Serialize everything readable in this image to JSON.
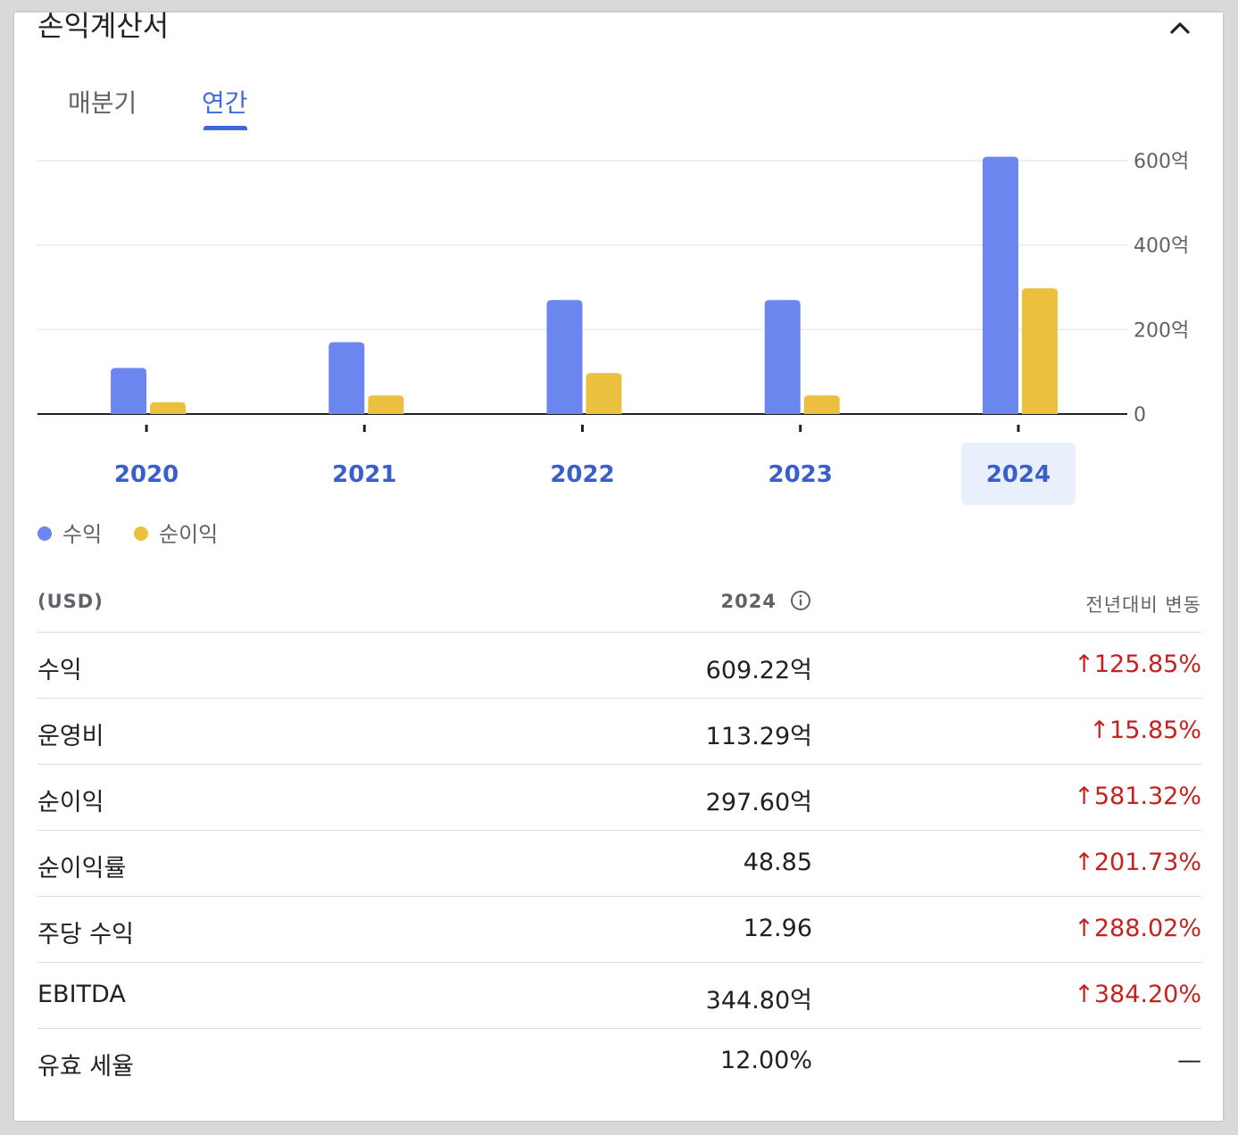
{
  "card": {
    "title": "손익계산서",
    "tabs": [
      {
        "label": "매분기",
        "active": false
      },
      {
        "label": "연간",
        "active": true
      }
    ]
  },
  "chart_data": {
    "type": "bar",
    "categories": [
      "2020",
      "2021",
      "2022",
      "2023",
      "2024"
    ],
    "selected_category": "2024",
    "series": [
      {
        "name": "수익",
        "color": "#6b86ee",
        "values": [
          109,
          170,
          270,
          270,
          609.22
        ]
      },
      {
        "name": "순이익",
        "color": "#ebc03f",
        "values": [
          28,
          44,
          97,
          44,
          297.6
        ]
      }
    ],
    "ylim": [
      0,
      600
    ],
    "yticks": [
      {
        "value": 0,
        "label": "0"
      },
      {
        "value": 200,
        "label": "200억"
      },
      {
        "value": 400,
        "label": "400억"
      },
      {
        "value": 600,
        "label": "600억"
      }
    ],
    "grid": true,
    "legend_position": "bottom-left"
  },
  "table": {
    "header": {
      "currency": "(USD)",
      "year": "2024",
      "change": "전년대비 변동"
    },
    "rows": [
      {
        "label": "수익",
        "value": "609.22억",
        "change": "↑125.85%"
      },
      {
        "label": "운영비",
        "value": "113.29억",
        "change": "↑15.85%"
      },
      {
        "label": "순이익",
        "value": "297.60억",
        "change": "↑581.32%"
      },
      {
        "label": "순이익률",
        "value": "48.85",
        "change": "↑201.73%"
      },
      {
        "label": "주당 수익",
        "value": "12.96",
        "change": "↑288.02%"
      },
      {
        "label": "EBITDA",
        "value": "344.80억",
        "change": "↑384.20%"
      },
      {
        "label": "유효 세율",
        "value": "12.00%",
        "change": "—"
      }
    ]
  },
  "icons": {
    "collapse": "chevron-up-icon",
    "info": "info-icon"
  }
}
